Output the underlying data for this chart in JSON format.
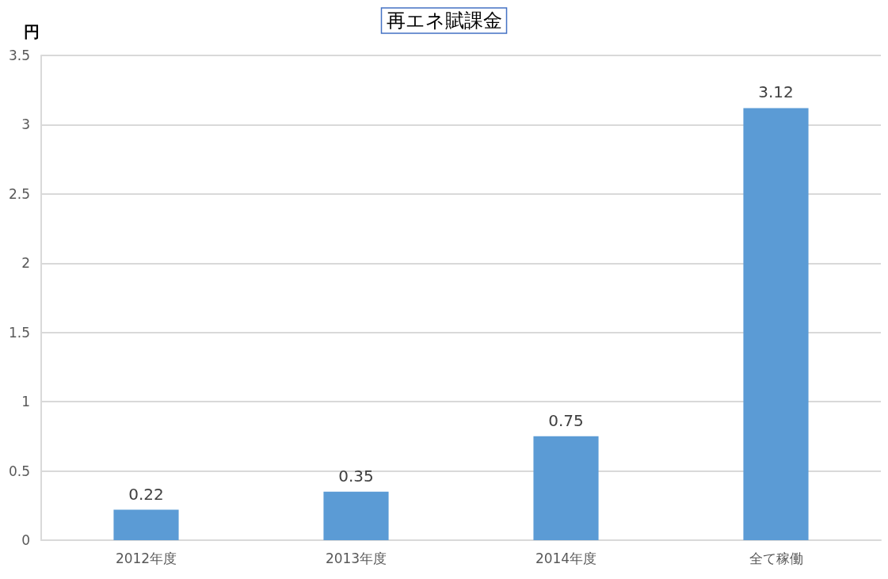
{
  "chart_data": {
    "type": "bar",
    "title": "再エネ賦課金",
    "ylabel": "円",
    "categories": [
      "2012年度",
      "2013年度",
      "2014年度",
      "全て稼働"
    ],
    "values": [
      0.22,
      0.35,
      0.75,
      3.12
    ],
    "color": "#5b9bd5",
    "ylim": [
      0,
      3.5
    ],
    "yticks": [
      0,
      0.5,
      1,
      1.5,
      2,
      2.5,
      3,
      3.5
    ],
    "grid": "y",
    "data_labels": true
  }
}
